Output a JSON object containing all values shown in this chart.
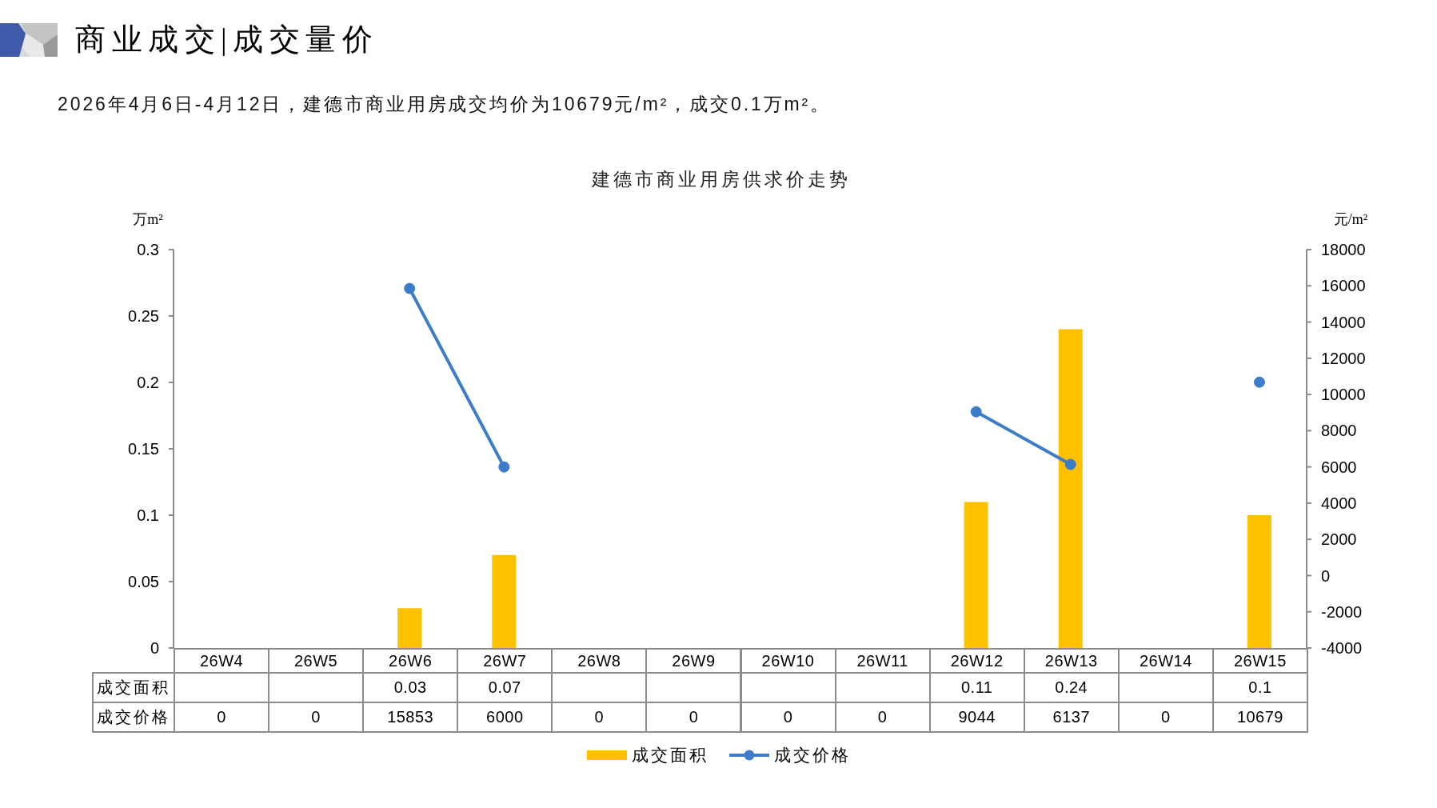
{
  "chart_data": {
    "type": "bar",
    "title": "建德市商业用房供求价走势",
    "subtitle": "2026年4月6日-4月12日，建德市商业用房成交均价为10679元/m²，成交0.1万m²。",
    "annotations": [
      "商业成交|成交量价"
    ],
    "ylabel": "万m²",
    "y2label": "元/m²",
    "categories": [
      "26W4",
      "26W5",
      "26W6",
      "26W7",
      "26W8",
      "26W9",
      "26W10",
      "26W11",
      "26W12",
      "26W13",
      "26W14",
      "26W15"
    ],
    "series": [
      {
        "name": "成交面积",
        "color": "#ffc000",
        "values": [
          null,
          null,
          0.03,
          0.07,
          null,
          null,
          null,
          null,
          0.11,
          0.24,
          null,
          0.1
        ],
        "value_labels": [
          null,
          null,
          "0.03",
          "0.07",
          null,
          null,
          null,
          null,
          "0.11",
          "0.24",
          null,
          "0.1"
        ]
      },
      {
        "name": "成交价格",
        "type": "line",
        "axis": "y2",
        "color": "#3d7cc9",
        "values": [
          null,
          null,
          15853,
          6000,
          null,
          null,
          null,
          null,
          9044,
          6137,
          null,
          10679
        ],
        "value_labels": [
          "0",
          "0",
          "15853",
          "6000",
          "0",
          "0",
          "0",
          "0",
          "9044",
          "6137",
          "0",
          "10679"
        ]
      }
    ],
    "ylim": [
      0,
      0.3
    ],
    "yticks": [
      0,
      0.05,
      0.1,
      0.15,
      0.2,
      0.25,
      0.3
    ],
    "y2lim": [
      -4000,
      18000
    ],
    "y2ticks": [
      -4000,
      -2000,
      0,
      2000,
      4000,
      6000,
      8000,
      10000,
      12000,
      14000,
      16000,
      18000
    ],
    "legend": "bottom",
    "marker": "circle",
    "line_style": "solid"
  }
}
